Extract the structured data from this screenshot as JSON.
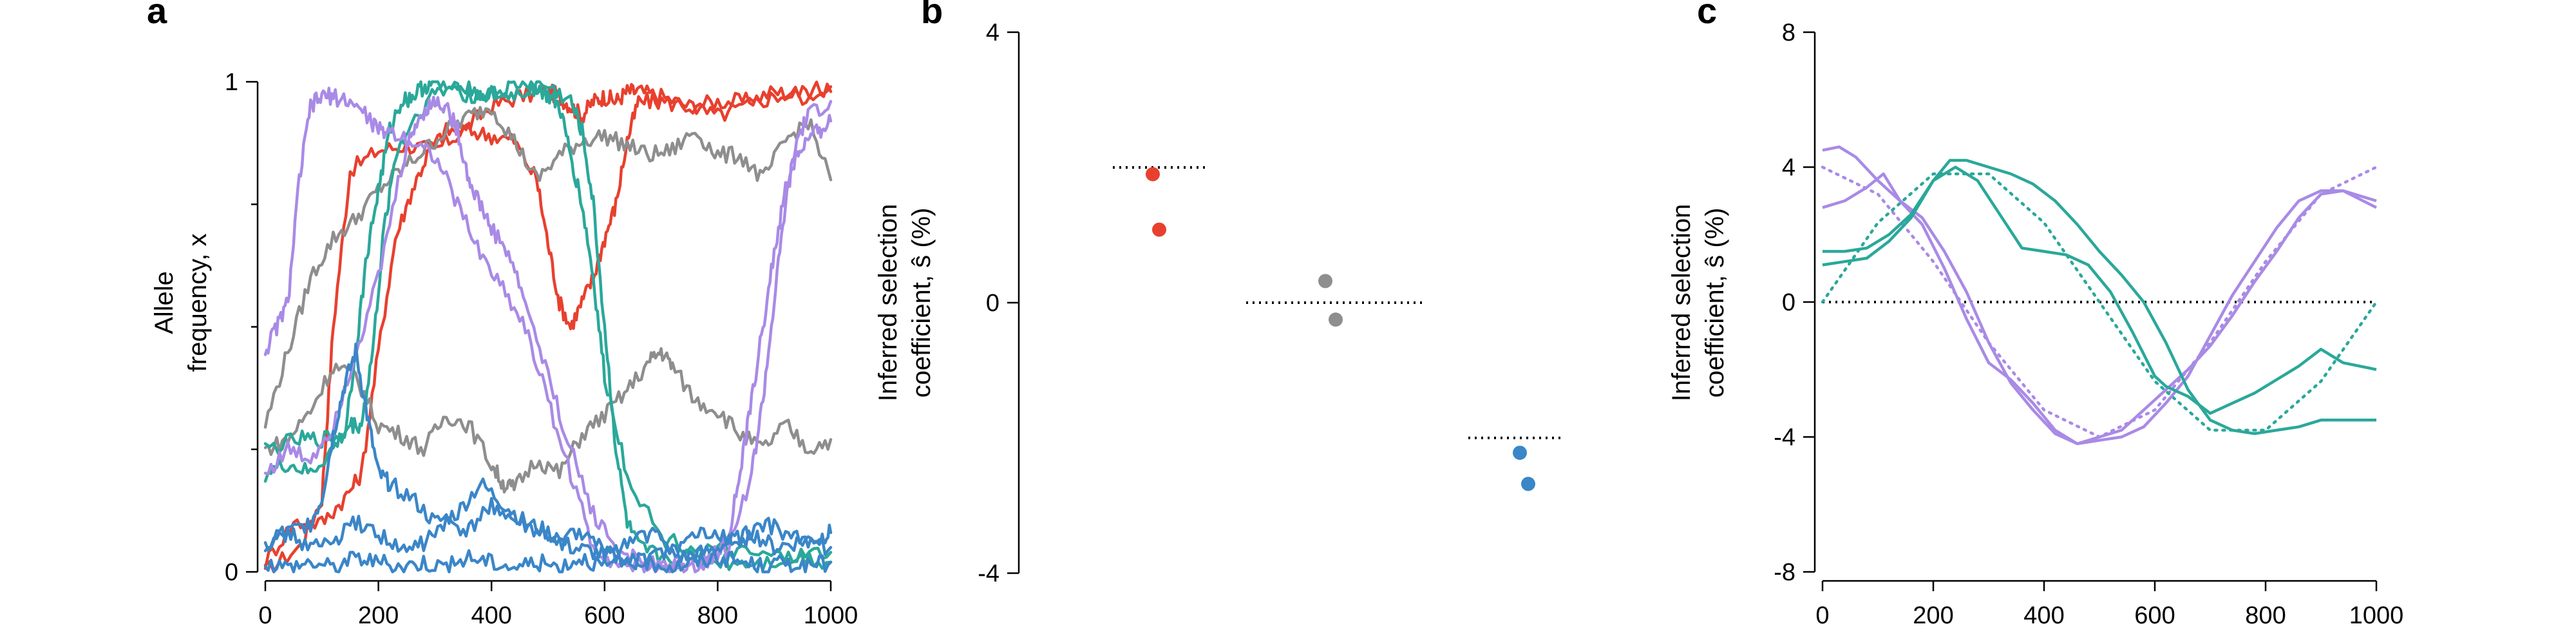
{
  "figure": {
    "panels": [
      {
        "letter": "a"
      },
      {
        "letter": "b"
      },
      {
        "letter": "c"
      }
    ]
  },
  "colors": {
    "red": "#e8402e",
    "gray": "#8e8e8e",
    "blue": "#3a86c8",
    "teal": "#2aa89a",
    "purple": "#a98ae6",
    "black": "#000000"
  },
  "chart_data": [
    {
      "panel": "a",
      "type": "line",
      "ylabel_line1": "Allele",
      "ylabel_line2": "frequency, x",
      "xlim": [
        0,
        1000
      ],
      "ylim": [
        0,
        1
      ],
      "xticks": [
        0,
        200,
        400,
        600,
        800,
        1000
      ],
      "yticks": [
        0,
        1
      ],
      "ytick_labels": [
        "0",
        "1"
      ],
      "series": [
        {
          "color": "red",
          "x": [
            0,
            60,
            100,
            120,
            150,
            200,
            250,
            300,
            350,
            400,
            450,
            500,
            520,
            540,
            560,
            580,
            600,
            620,
            640,
            660,
            700,
            750,
            800,
            850,
            900,
            950,
            1000
          ],
          "y": [
            0,
            0.05,
            0.15,
            0.5,
            0.82,
            0.86,
            0.87,
            0.86,
            0.9,
            0.95,
            0.97,
            0.98,
            0.97,
            0.95,
            0.93,
            0.96,
            0.97,
            0.96,
            0.98,
            0.98,
            0.97,
            0.95,
            0.96,
            0.96,
            0.98,
            0.97,
            0.98
          ]
        },
        {
          "color": "red",
          "x": [
            0,
            50,
            100,
            140,
            170,
            200,
            230,
            260,
            290,
            320,
            360,
            400,
            440,
            480,
            500,
            520,
            540,
            560,
            580,
            600,
            620,
            640,
            660,
            700,
            750,
            800,
            850,
            900,
            950,
            1000
          ],
          "y": [
            0.02,
            0.1,
            0.1,
            0.15,
            0.2,
            0.45,
            0.68,
            0.78,
            0.86,
            0.9,
            0.9,
            0.89,
            0.88,
            0.8,
            0.67,
            0.55,
            0.5,
            0.55,
            0.6,
            0.68,
            0.75,
            0.88,
            0.96,
            0.96,
            0.95,
            0.93,
            0.95,
            0.97,
            0.98,
            0.99
          ]
        },
        {
          "color": "gray",
          "x": [
            0,
            40,
            80,
            120,
            160,
            200,
            240,
            280,
            320,
            360,
            400,
            440,
            480,
            520,
            560,
            600,
            640,
            680,
            720,
            760,
            800,
            840,
            880,
            920,
            960,
            1000
          ],
          "y": [
            0.3,
            0.45,
            0.6,
            0.68,
            0.72,
            0.78,
            0.82,
            0.86,
            0.9,
            0.93,
            0.95,
            0.88,
            0.8,
            0.85,
            0.88,
            0.89,
            0.87,
            0.85,
            0.86,
            0.9,
            0.85,
            0.85,
            0.8,
            0.88,
            0.92,
            0.8
          ]
        },
        {
          "color": "gray",
          "x": [
            0,
            40,
            80,
            120,
            160,
            200,
            240,
            280,
            320,
            360,
            400,
            420,
            440,
            480,
            520,
            560,
            600,
            640,
            680,
            700,
            720,
            760,
            800,
            840,
            880,
            920,
            960,
            1000
          ],
          "y": [
            0.25,
            0.27,
            0.33,
            0.42,
            0.4,
            0.3,
            0.28,
            0.25,
            0.32,
            0.3,
            0.22,
            0.18,
            0.17,
            0.23,
            0.2,
            0.28,
            0.32,
            0.37,
            0.43,
            0.45,
            0.42,
            0.35,
            0.33,
            0.28,
            0.25,
            0.3,
            0.25,
            0.27
          ]
        },
        {
          "color": "teal",
          "x": [
            0,
            60,
            100,
            140,
            160,
            180,
            200,
            220,
            240,
            260,
            280,
            300,
            340,
            380,
            420,
            460,
            500,
            540,
            560,
            580,
            600,
            620,
            640,
            660,
            700,
            760,
            820,
            880,
            940,
            1000
          ],
          "y": [
            0.25,
            0.27,
            0.27,
            0.28,
            0.45,
            0.65,
            0.78,
            0.9,
            0.96,
            0.97,
            0.99,
            1.0,
            0.98,
            0.97,
            0.98,
            1.0,
            0.99,
            0.96,
            0.9,
            0.75,
            0.5,
            0.25,
            0.1,
            0.05,
            0.03,
            0.03,
            0.02,
            0.02,
            0.03,
            0.02
          ]
        },
        {
          "color": "teal",
          "x": [
            0,
            40,
            80,
            120,
            150,
            170,
            190,
            210,
            230,
            260,
            300,
            340,
            380,
            420,
            460,
            480,
            500,
            520,
            540,
            560,
            580,
            600,
            640,
            700,
            760,
            820,
            880,
            940,
            1000
          ],
          "y": [
            0.2,
            0.22,
            0.2,
            0.25,
            0.3,
            0.3,
            0.45,
            0.7,
            0.85,
            0.92,
            0.98,
            0.99,
            0.98,
            0.97,
            0.98,
            0.99,
            0.97,
            0.95,
            0.85,
            0.75,
            0.6,
            0.4,
            0.2,
            0.07,
            0.05,
            0.04,
            0.03,
            0.03,
            0.04
          ]
        },
        {
          "color": "purple",
          "x": [
            0,
            20,
            40,
            60,
            80,
            100,
            120,
            150,
            180,
            200,
            220,
            260,
            300,
            340,
            380,
            420,
            460,
            500,
            540,
            580,
            620,
            660,
            700,
            740,
            780,
            820,
            860,
            880,
            900,
            920,
            940,
            960,
            1000
          ],
          "y": [
            0.45,
            0.5,
            0.55,
            0.8,
            0.95,
            0.97,
            0.97,
            0.96,
            0.93,
            0.9,
            0.9,
            0.88,
            0.85,
            0.75,
            0.65,
            0.58,
            0.5,
            0.35,
            0.2,
            0.05,
            0.02,
            0.01,
            0.01,
            0.02,
            0.03,
            0.05,
            0.2,
            0.35,
            0.55,
            0.75,
            0.88,
            0.93,
            0.96
          ]
        },
        {
          "color": "purple",
          "x": [
            0,
            40,
            80,
            120,
            160,
            200,
            240,
            260,
            280,
            300,
            320,
            340,
            360,
            380,
            400,
            430,
            460,
            500,
            540,
            580,
            620,
            660,
            700,
            740,
            780,
            800,
            820,
            840,
            860,
            880,
            900,
            920,
            940,
            960,
            980,
            1000
          ],
          "y": [
            0.2,
            0.25,
            0.23,
            0.3,
            0.45,
            0.6,
            0.82,
            0.9,
            0.94,
            0.96,
            0.95,
            0.9,
            0.8,
            0.75,
            0.7,
            0.65,
            0.55,
            0.4,
            0.25,
            0.12,
            0.05,
            0.02,
            0.01,
            0.01,
            0.02,
            0.04,
            0.08,
            0.2,
            0.35,
            0.5,
            0.65,
            0.78,
            0.85,
            0.88,
            0.9,
            0.92
          ]
        },
        {
          "color": "blue",
          "x": [
            0,
            40,
            80,
            100,
            120,
            140,
            160,
            180,
            200,
            220,
            260,
            300,
            340,
            380,
            420,
            460,
            500,
            540,
            580,
            620,
            660,
            700,
            740,
            780,
            820,
            860,
            900,
            940,
            980,
            1000
          ],
          "y": [
            0.05,
            0.08,
            0.1,
            0.15,
            0.28,
            0.38,
            0.45,
            0.32,
            0.2,
            0.18,
            0.15,
            0.1,
            0.12,
            0.18,
            0.14,
            0.1,
            0.08,
            0.05,
            0.04,
            0.03,
            0.02,
            0.04,
            0.03,
            0.04,
            0.06,
            0.08,
            0.05,
            0.06,
            0.07,
            0.08
          ]
        },
        {
          "color": "blue",
          "x": [
            0,
            40,
            80,
            120,
            160,
            200,
            240,
            280,
            320,
            360,
            400,
            440,
            480,
            520,
            560,
            600,
            640,
            680,
            720,
            760,
            800,
            840,
            880,
            920,
            960,
            1000
          ],
          "y": [
            0.06,
            0.08,
            0.05,
            0.06,
            0.1,
            0.08,
            0.04,
            0.06,
            0.1,
            0.08,
            0.14,
            0.1,
            0.08,
            0.06,
            0.08,
            0.04,
            0.06,
            0.08,
            0.05,
            0.07,
            0.08,
            0.05,
            0.1,
            0.08,
            0.06,
            0.05
          ]
        },
        {
          "color": "blue",
          "x": [
            0,
            40,
            80,
            120,
            160,
            200,
            240,
            280,
            320,
            360,
            400,
            440,
            480,
            520,
            560,
            600,
            640,
            680,
            720,
            760,
            800,
            840,
            880,
            920,
            960,
            1000
          ],
          "y": [
            0.02,
            0.01,
            0.02,
            0.01,
            0.03,
            0.02,
            0.01,
            0.02,
            0.01,
            0.03,
            0.02,
            0.01,
            0.02,
            0.01,
            0.03,
            0.01,
            0.02,
            0.02,
            0.01,
            0.02,
            0.03,
            0.02,
            0.01,
            0.02,
            0.01,
            0.02
          ]
        }
      ]
    },
    {
      "panel": "b",
      "type": "scatter",
      "ylabel_line1": "Inferred selection",
      "ylabel_line2": "coefficient, ŝ (%)",
      "ylim": [
        -4,
        4
      ],
      "yticks": [
        -4,
        0,
        4
      ],
      "groups": [
        {
          "color": "red",
          "true_value": 2,
          "inferred": [
            1.9,
            1.08
          ]
        },
        {
          "color": "gray",
          "true_value": 0,
          "inferred": [
            0.32,
            -0.25
          ]
        },
        {
          "color": "blue",
          "true_value": -2,
          "inferred": [
            -2.22,
            -2.68
          ]
        }
      ]
    },
    {
      "panel": "c",
      "type": "line",
      "ylabel_line1": "Inferred selection",
      "ylabel_line2": "coefficient, ŝ (%)",
      "xlim": [
        0,
        1000
      ],
      "ylim": [
        -8,
        8
      ],
      "xticks": [
        0,
        200,
        400,
        600,
        800,
        1000
      ],
      "yticks": [
        -8,
        -4,
        0,
        4,
        8
      ],
      "reference_line": 0,
      "true_curves": [
        {
          "color": "purple",
          "x": [
            0,
            100,
            200,
            300,
            400,
            500,
            600,
            700,
            800,
            900,
            1000
          ],
          "y": [
            4,
            3.2,
            1.2,
            -1.2,
            -3.2,
            -4,
            -3.2,
            -1.2,
            1.2,
            3.2,
            4
          ]
        },
        {
          "color": "teal",
          "x": [
            0,
            100,
            200,
            300,
            400,
            500,
            600,
            700,
            800,
            900,
            1000
          ],
          "y": [
            0,
            2.35,
            3.8,
            3.8,
            2.35,
            0,
            -2.35,
            -3.8,
            -3.8,
            -2.35,
            0
          ]
        }
      ],
      "series": [
        {
          "color": "purple",
          "x": [
            0,
            30,
            60,
            100,
            140,
            180,
            220,
            260,
            300,
            340,
            380,
            420,
            460,
            500,
            540,
            580,
            620,
            660,
            700,
            740,
            780,
            820,
            860,
            900,
            940,
            1000
          ],
          "y": [
            4.5,
            4.6,
            4.3,
            3.6,
            3.0,
            2.5,
            1.5,
            0.3,
            -1.2,
            -2.4,
            -3.2,
            -3.9,
            -4.2,
            -4.1,
            -4.0,
            -3.7,
            -3.0,
            -2.2,
            -1.0,
            0.2,
            1.2,
            2.2,
            3.0,
            3.3,
            3.3,
            3.0
          ]
        },
        {
          "color": "purple",
          "x": [
            0,
            40,
            80,
            110,
            140,
            180,
            220,
            260,
            300,
            340,
            380,
            420,
            460,
            500,
            540,
            580,
            620,
            660,
            700,
            740,
            780,
            820,
            860,
            900,
            940,
            1000
          ],
          "y": [
            2.8,
            3.0,
            3.4,
            3.8,
            3.0,
            2.3,
            1.0,
            -0.5,
            -1.8,
            -2.3,
            -3.0,
            -3.8,
            -4.2,
            -4.0,
            -3.8,
            -3.2,
            -2.6,
            -2.0,
            -1.3,
            -0.4,
            0.6,
            1.5,
            2.5,
            3.2,
            3.3,
            2.8
          ]
        },
        {
          "color": "teal",
          "x": [
            0,
            40,
            80,
            120,
            160,
            200,
            230,
            260,
            300,
            340,
            380,
            420,
            460,
            500,
            540,
            580,
            620,
            660,
            700,
            740,
            780,
            820,
            860,
            900,
            940,
            1000
          ],
          "y": [
            1.1,
            1.2,
            1.3,
            1.8,
            2.5,
            3.6,
            4.2,
            4.2,
            4.0,
            3.8,
            3.5,
            3.0,
            2.3,
            1.5,
            0.8,
            0.0,
            -1.2,
            -2.6,
            -3.5,
            -3.8,
            -3.9,
            -3.8,
            -3.7,
            -3.5,
            -3.5,
            -3.5
          ]
        },
        {
          "color": "teal",
          "x": [
            0,
            40,
            80,
            120,
            160,
            200,
            240,
            280,
            320,
            360,
            400,
            440,
            480,
            520,
            560,
            600,
            620,
            660,
            700,
            740,
            780,
            820,
            860,
            900,
            940,
            1000
          ],
          "y": [
            1.5,
            1.5,
            1.6,
            2.0,
            2.6,
            3.6,
            4.0,
            3.6,
            2.6,
            1.6,
            1.5,
            1.4,
            1.1,
            0.3,
            -0.9,
            -2.2,
            -2.5,
            -2.8,
            -3.3,
            -3.0,
            -2.7,
            -2.3,
            -1.9,
            -1.4,
            -1.8,
            -2.0
          ]
        }
      ]
    }
  ]
}
